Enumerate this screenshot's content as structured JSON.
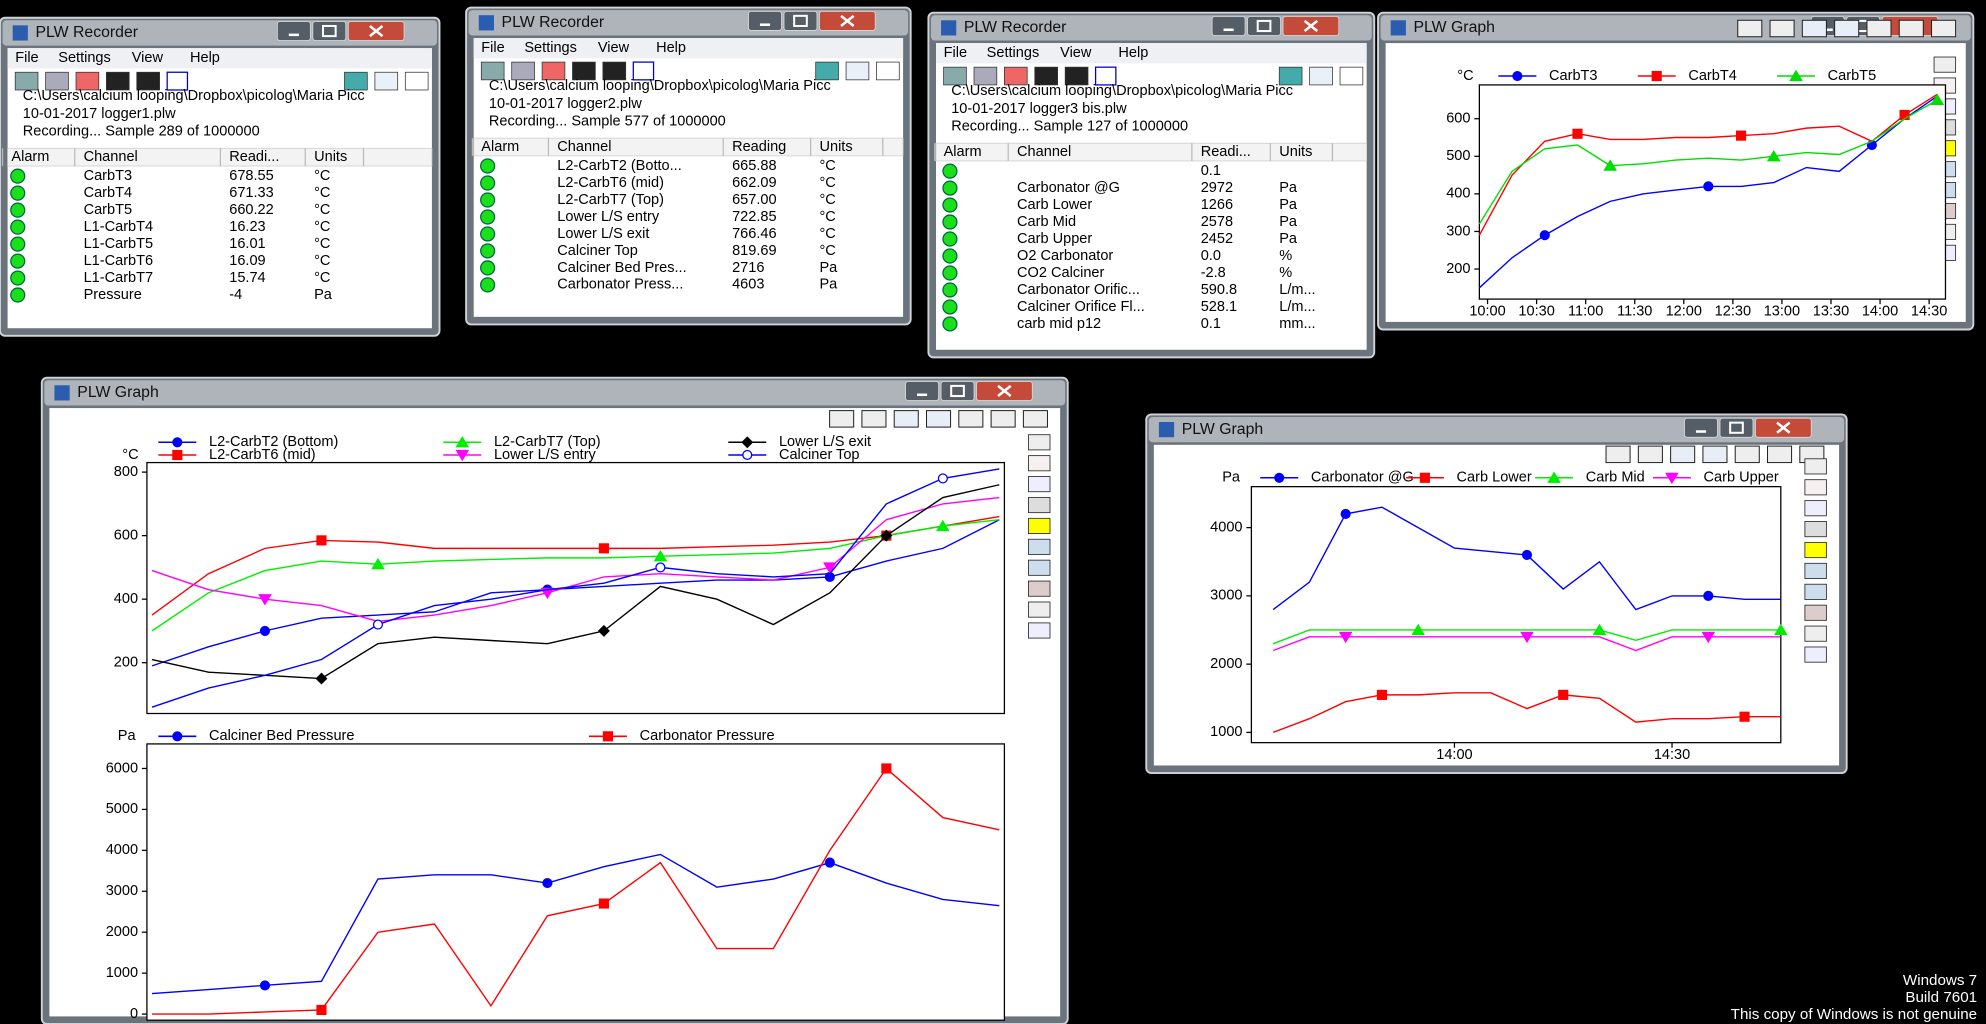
{
  "desktop_text": [
    "Windows 7",
    "Build 7601",
    "This copy of Windows is not genuine"
  ],
  "recorders": [
    {
      "title": "PLW Recorder",
      "menu": [
        "File",
        "Settings",
        "View",
        "Help"
      ],
      "path_lines": [
        "C:\\Users\\calcium looping\\Dropbox\\picolog\\Maria Picc",
        "10-01-2017 logger1.plw"
      ],
      "status": "Recording... Sample 289 of 1000000",
      "columns": [
        "Alarm",
        "Channel",
        "Readi...",
        "Units"
      ],
      "rows": [
        {
          "channel": "CarbT3",
          "reading": "678.55",
          "units": "°C"
        },
        {
          "channel": "CarbT4",
          "reading": "671.33",
          "units": "°C"
        },
        {
          "channel": "CarbT5",
          "reading": "660.22",
          "units": "°C"
        },
        {
          "channel": "L1-CarbT4",
          "reading": "16.23",
          "units": "°C"
        },
        {
          "channel": "L1-CarbT5",
          "reading": "16.01",
          "units": "°C"
        },
        {
          "channel": "L1-CarbT6",
          "reading": "16.09",
          "units": "°C"
        },
        {
          "channel": "L1-CarbT7",
          "reading": "15.74",
          "units": "°C"
        },
        {
          "channel": "Pressure",
          "reading": "-4",
          "units": "Pa"
        }
      ]
    },
    {
      "title": "PLW Recorder",
      "menu": [
        "File",
        "Settings",
        "View",
        "Help"
      ],
      "path_lines": [
        "C:\\Users\\calcium looping\\Dropbox\\picolog\\Maria Picc",
        "10-01-2017 logger2.plw"
      ],
      "status": "Recording... Sample 577 of 1000000",
      "columns": [
        "Alarm",
        "Channel",
        "Reading",
        "Units"
      ],
      "rows": [
        {
          "channel": "L2-CarbT2 (Botto...",
          "reading": "665.88",
          "units": "°C"
        },
        {
          "channel": "L2-CarbT6 (mid)",
          "reading": "662.09",
          "units": "°C"
        },
        {
          "channel": "L2-CarbT7 (Top)",
          "reading": "657.00",
          "units": "°C"
        },
        {
          "channel": "Lower L/S entry",
          "reading": "722.85",
          "units": "°C"
        },
        {
          "channel": "Lower L/S exit",
          "reading": "766.46",
          "units": "°C"
        },
        {
          "channel": "Calciner Top",
          "reading": "819.69",
          "units": "°C"
        },
        {
          "channel": "Calciner Bed Pres...",
          "reading": "2716",
          "units": "Pa"
        },
        {
          "channel": "Carbonator Press...",
          "reading": "4603",
          "units": "Pa"
        }
      ]
    },
    {
      "title": "PLW Recorder",
      "menu": [
        "File",
        "Settings",
        "View",
        "Help"
      ],
      "path_lines": [
        "C:\\Users\\calcium looping\\Dropbox\\picolog\\Maria Picc",
        "10-01-2017 logger3 bis.plw"
      ],
      "status": "Recording... Sample 127 of 1000000",
      "columns": [
        "Alarm",
        "Channel",
        "Readi...",
        "Units"
      ],
      "rows": [
        {
          "channel": null,
          "reading": "0.1",
          "units": null
        },
        {
          "channel": "Carbonator @G",
          "reading": "2972",
          "units": "Pa"
        },
        {
          "channel": "Carb Lower",
          "reading": "1266",
          "units": "Pa"
        },
        {
          "channel": "Carb Mid",
          "reading": "2578",
          "units": "Pa"
        },
        {
          "channel": "Carb Upper",
          "reading": "2452",
          "units": "Pa"
        },
        {
          "channel": "O2 Carbonator",
          "reading": "0.0",
          "units": "%"
        },
        {
          "channel": "CO2 Calciner",
          "reading": "-2.8",
          "units": "%"
        },
        {
          "channel": "Carbonator Orific...",
          "reading": "590.8",
          "units": "L/m..."
        },
        {
          "channel": "Calciner Orifice Fl...",
          "reading": "528.1",
          "units": "L/m..."
        },
        {
          "channel": "carb mid p12",
          "reading": "0.1",
          "units": "mm..."
        }
      ]
    }
  ],
  "graphs": [
    {
      "title": "PLW Graph",
      "charts": [
        {
          "type": "line",
          "unit": "°C",
          "xlim": [
            595,
            880
          ],
          "xticks": [
            {
              "value": 600,
              "label": "10:00"
            },
            {
              "value": 630,
              "label": "10:30"
            },
            {
              "value": 660,
              "label": "11:00"
            },
            {
              "value": 690,
              "label": "11:30"
            },
            {
              "value": 720,
              "label": "12:00"
            },
            {
              "value": 750,
              "label": "12:30"
            },
            {
              "value": 780,
              "label": "13:00"
            },
            {
              "value": 810,
              "label": "13:30"
            },
            {
              "value": 840,
              "label": "14:00"
            },
            {
              "value": 870,
              "label": "14:30"
            }
          ],
          "x": [
            595,
            615,
            635,
            655,
            675,
            695,
            715,
            735,
            755,
            775,
            795,
            815,
            835,
            855,
            875
          ],
          "ylim": [
            120,
            690
          ],
          "yticks": [
            200,
            300,
            400,
            500,
            600
          ],
          "series": [
            {
              "name": "CarbT3",
              "color": "#0000ff",
              "marker": "circle",
              "values": [
                150,
                230,
                290,
                340,
                380,
                400,
                410,
                420,
                420,
                430,
                470,
                460,
                530,
                600,
                660
              ]
            },
            {
              "name": "CarbT4",
              "color": "#ff0000",
              "marker": "square",
              "values": [
                290,
                450,
                540,
                560,
                545,
                545,
                550,
                550,
                555,
                560,
                575,
                580,
                540,
                610,
                665
              ]
            },
            {
              "name": "CarbT5",
              "color": "#00dd00",
              "marker": "triangle",
              "values": [
                320,
                460,
                520,
                530,
                475,
                480,
                490,
                495,
                490,
                500,
                510,
                505,
                540,
                600,
                650
              ]
            }
          ]
        }
      ]
    },
    {
      "title": "PLW Graph",
      "charts": [
        {
          "type": "line",
          "unit": "°C",
          "ylim": [
            40,
            830
          ],
          "yticks": [
            200,
            400,
            600,
            800
          ],
          "series": [
            {
              "name": "L2-CarbT2 (Bottom)",
              "color": "#0000ff",
              "marker": "circle",
              "values": [
                190,
                250,
                300,
                340,
                350,
                360,
                420,
                430,
                440,
                450,
                460,
                460,
                470,
                520,
                560,
                650
              ]
            },
            {
              "name": "L2-CarbT6 (mid)",
              "color": "#ff0000",
              "marker": "square",
              "values": [
                350,
                480,
                560,
                585,
                580,
                560,
                560,
                560,
                560,
                560,
                565,
                570,
                580,
                600,
                630,
                660
              ]
            },
            {
              "name": "L2-CarbT7 (Top)",
              "color": "#00ee00",
              "marker": "triangle",
              "values": [
                300,
                420,
                490,
                520,
                510,
                520,
                525,
                530,
                530,
                535,
                540,
                545,
                560,
                600,
                630,
                650
              ]
            },
            {
              "name": "Lower L/S entry",
              "color": "#ff00ff",
              "marker": "triangle-down",
              "values": [
                490,
                430,
                400,
                380,
                330,
                350,
                380,
                420,
                470,
                480,
                470,
                460,
                500,
                650,
                700,
                720
              ]
            },
            {
              "name": "Lower L/S exit",
              "color": "#000000",
              "marker": "diamond",
              "values": [
                210,
                170,
                160,
                150,
                260,
                280,
                270,
                260,
                300,
                440,
                400,
                320,
                420,
                600,
                720,
                760
              ]
            },
            {
              "name": "Calciner Top",
              "color": "#0000ff",
              "marker": "open-circle",
              "values": [
                60,
                120,
                160,
                210,
                320,
                380,
                400,
                430,
                450,
                500,
                480,
                470,
                480,
                700,
                780,
                810
              ]
            }
          ]
        },
        {
          "type": "line",
          "unit": "Pa",
          "ylim": [
            -150,
            6600
          ],
          "yticks": [
            0,
            1000,
            2000,
            3000,
            4000,
            5000,
            6000
          ],
          "series": [
            {
              "name": "Calciner Bed Pressure",
              "color": "#0000ff",
              "marker": "circle",
              "values": [
                500,
                600,
                700,
                800,
                3300,
                3400,
                3400,
                3200,
                3600,
                3900,
                3100,
                3300,
                3700,
                3200,
                2800,
                2650
              ]
            },
            {
              "name": "Carbonator Pressure",
              "color": "#ff0000",
              "marker": "square",
              "values": [
                0,
                0,
                50,
                100,
                2000,
                2200,
                200,
                2400,
                2700,
                3700,
                1600,
                1600,
                4000,
                6000,
                4800,
                4500
              ]
            }
          ]
        }
      ]
    },
    {
      "title": "PLW Graph",
      "charts": [
        {
          "type": "line",
          "unit": "Pa",
          "xlim": [
            812,
            885
          ],
          "xticks": [
            {
              "value": 840,
              "label": "14:00"
            },
            {
              "value": 870,
              "label": "14:30"
            }
          ],
          "x": [
            815,
            820,
            825,
            830,
            835,
            840,
            845,
            850,
            855,
            860,
            865,
            870,
            875,
            880,
            885
          ],
          "ylim": [
            850,
            4600
          ],
          "yticks": [
            1000,
            2000,
            3000,
            4000
          ],
          "series": [
            {
              "name": "Carbonator @G",
              "color": "#0000ff",
              "marker": "circle",
              "values": [
                2800,
                3200,
                4200,
                4300,
                4000,
                3700,
                3650,
                3600,
                3100,
                3500,
                2800,
                3000,
                3000,
                2950,
                2950
              ]
            },
            {
              "name": "Carb Lower",
              "color": "#ff0000",
              "marker": "square",
              "values": [
                1000,
                1200,
                1450,
                1550,
                1550,
                1580,
                1580,
                1350,
                1550,
                1500,
                1150,
                1200,
                1200,
                1230,
                1230
              ]
            },
            {
              "name": "Carb Mid",
              "color": "#00ee00",
              "marker": "triangle",
              "values": [
                2300,
                2500,
                2500,
                2500,
                2500,
                2500,
                2500,
                2500,
                2500,
                2500,
                2350,
                2500,
                2500,
                2500,
                2500
              ]
            },
            {
              "name": "Carb Upper",
              "color": "#ff00ff",
              "marker": "triangle-down",
              "values": [
                2200,
                2400,
                2400,
                2400,
                2400,
                2400,
                2400,
                2400,
                2400,
                2400,
                2200,
                2400,
                2400,
                2400,
                2400
              ]
            }
          ]
        }
      ]
    }
  ]
}
